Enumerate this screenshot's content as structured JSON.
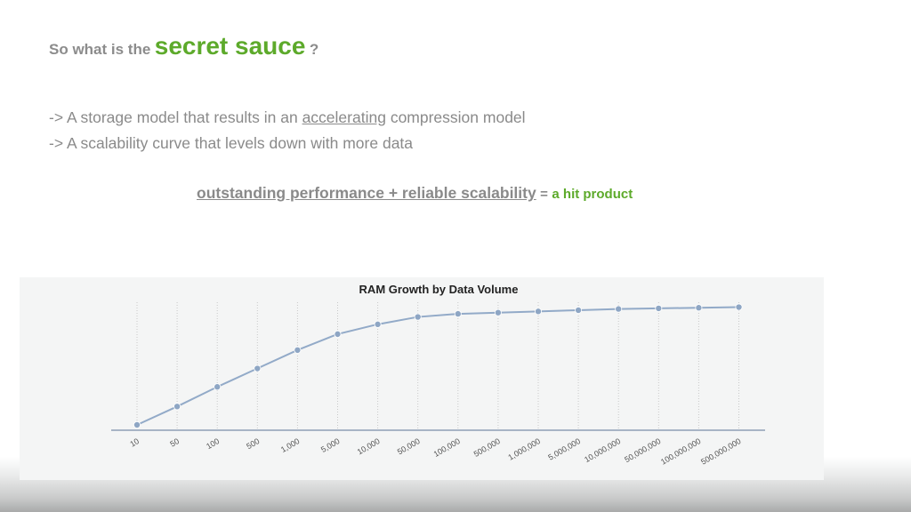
{
  "headline": {
    "prefix": "So what is the",
    "accent": "secret sauce",
    "suffix": "?"
  },
  "bullets": [
    {
      "before": "-> A storage model that results in an",
      "underlined": "accelerating",
      "after": "compression model"
    },
    {
      "before": "-> A scalability curve that levels down with more data"
    }
  ],
  "equation": {
    "part1": "outstanding performance +  reliable scalability",
    "equals": "=",
    "result": "a hit product"
  },
  "colors": {
    "accent_green": "#5daa2b",
    "text_gray": "#8a8a8a",
    "series_line": "#92aac8"
  },
  "chart_data": {
    "type": "line",
    "title": "RAM Growth by Data Volume",
    "xlabel": "",
    "ylabel": "",
    "grid": "vertical dotted",
    "x": [
      "10",
      "50",
      "100",
      "500",
      "1,000",
      "5,000",
      "10,000",
      "50,000",
      "100,000",
      "500,000",
      "1,000,000",
      "5,000,000",
      "10,000,000",
      "50,000,000",
      "100,000,000",
      "500,000,000"
    ],
    "series": [
      {
        "values": [
          0,
          15,
          31,
          46,
          61,
          74,
          82,
          88,
          90.5,
          91.5,
          92.5,
          93.5,
          94.5,
          95,
          95.5,
          96
        ]
      }
    ],
    "ylim": [
      0,
      100
    ]
  }
}
